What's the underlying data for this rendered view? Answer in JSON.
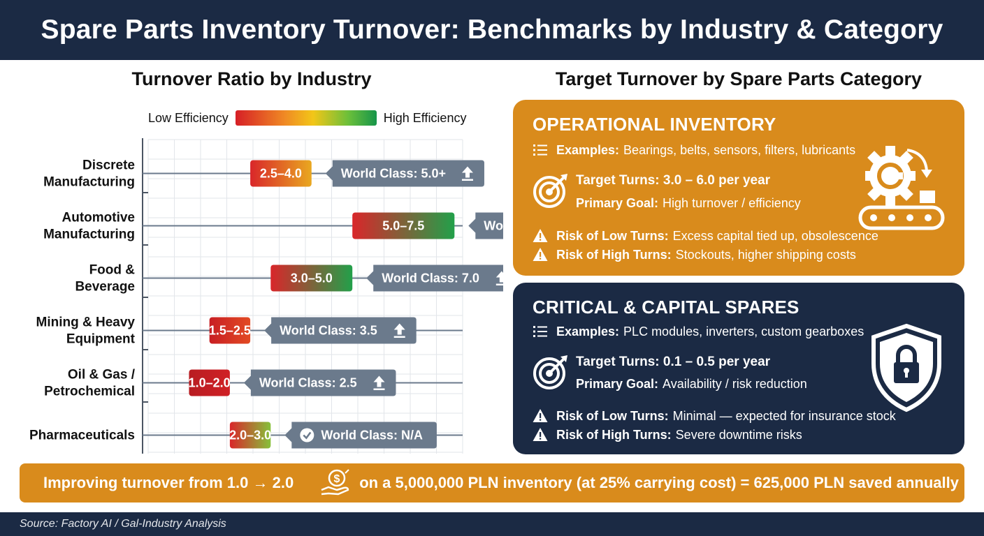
{
  "header": {
    "title": "Spare Parts Inventory Turnover: Benchmarks by Industry & Category"
  },
  "left_panel": {
    "title": "Turnover Ratio by Industry",
    "scale_low": "Low Efficiency",
    "scale_high": "High Efficiency"
  },
  "chart_data": {
    "type": "bar",
    "title": "Turnover Ratio by Industry",
    "x_range": [
      0,
      7.7
    ],
    "grid": true,
    "categories": [
      [
        "Discrete",
        "Manufacturing"
      ],
      [
        "Automotive",
        "Manufacturing"
      ],
      [
        "Food &",
        "Beverage"
      ],
      [
        "Mining & Heavy",
        "Equipment"
      ],
      [
        "Oil & Gas /",
        "Petrochemical"
      ],
      [
        "Pharmaceuticals"
      ]
    ],
    "ranges": [
      {
        "low": 2.5,
        "high": 4.0,
        "label": "2.5–4.0",
        "color_start": "#d9262a",
        "color_end": "#e9a820"
      },
      {
        "low": 5.0,
        "high": 7.5,
        "label": "5.0–7.5",
        "color_start": "#d9262a",
        "color_end": "#22a04a"
      },
      {
        "low": 3.0,
        "high": 5.0,
        "label": "3.0–5.0",
        "color_start": "#d9262a",
        "color_end": "#22a04a"
      },
      {
        "low": 1.5,
        "high": 2.5,
        "label": "1.5–2.5",
        "color_start": "#c81e23",
        "color_end": "#e24a23"
      },
      {
        "low": 1.0,
        "high": 2.0,
        "label": "1.0–2.0",
        "color_start": "#b81d22",
        "color_end": "#d02025"
      },
      {
        "low": 2.0,
        "high": 3.0,
        "label": "2.0–3.0",
        "color_start": "#d9262a",
        "color_end": "#86c13a"
      }
    ],
    "world_class": [
      {
        "label": "World Class: 5.0+",
        "icon": "arrow-up-icon"
      },
      {
        "label": "World Class: N/A",
        "icon": "check-circle-icon"
      },
      {
        "label": "World Class: 7.0",
        "icon": "arrow-up-icon"
      },
      {
        "label": "World Class: 3.5",
        "icon": "arrow-up-icon"
      },
      {
        "label": "World Class: 2.5",
        "icon": "arrow-up-icon"
      },
      {
        "label": "World Class: N/A",
        "icon": "check-circle-icon",
        "icon_first": true
      }
    ]
  },
  "right_panel": {
    "title": "Target Turnover by Spare Parts Category"
  },
  "operational": {
    "title": "OPERATIONAL INVENTORY",
    "examples_label": "Examples:",
    "examples_value": "Bearings, belts, sensors, filters, lubricants",
    "target_label": "Target Turns: 3.0 – 6.0 per year",
    "goal_label": "Primary Goal:",
    "goal_value": "High turnover / efficiency",
    "risk_low_label": "Risk of Low Turns:",
    "risk_low_value": "Excess capital tied up, obsolescence",
    "risk_high_label": "Risk of High Turns:",
    "risk_high_value": "Stockouts, higher shipping costs",
    "icon": "gear-conveyor-icon"
  },
  "critical": {
    "title": "CRITICAL & CAPITAL SPARES",
    "examples_label": "Examples:",
    "examples_value": "PLC modules, inverters, custom gearboxes",
    "target_label": "Target Turns: 0.1 – 0.5 per year",
    "goal_label": "Primary Goal:",
    "goal_value": "Availability / risk reduction",
    "risk_low_label": "Risk of Low Turns:",
    "risk_low_value": "Minimal — expected for insurance stock",
    "risk_high_label": "Risk of High Turns:",
    "risk_high_value": "Severe downtime risks",
    "icon": "shield-lock-icon"
  },
  "banner": {
    "left": "Improving turnover from 1.0 → 2.0",
    "right": "on a 5,000,000 PLN inventory (at 25% carrying cost) = 625,000 PLN saved annually",
    "icon": "money-hand-icon"
  },
  "footer": {
    "source": "Source: Factory AI / Gal-Industry Analysis"
  },
  "colors": {
    "navy": "#1b2a44",
    "amber": "#d98b1c",
    "slate": "#6b7a8c",
    "white": "#ffffff"
  }
}
